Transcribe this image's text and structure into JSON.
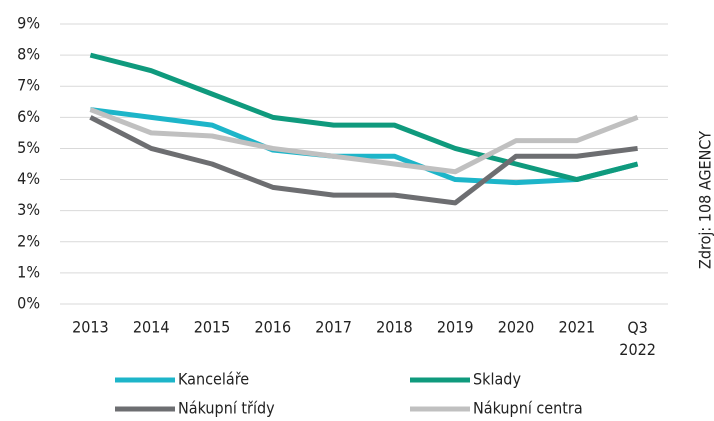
{
  "chart_data": {
    "type": "line",
    "source": "Zdroj: 108 AGENCY",
    "categories": [
      "2013",
      "2014",
      "2015",
      "2016",
      "2017",
      "2018",
      "2019",
      "2020",
      "2021",
      "Q3 2022"
    ],
    "series": [
      {
        "name": "Kanceláře",
        "color": "#1db5c9",
        "values": [
          6.25,
          6.0,
          5.75,
          4.95,
          4.75,
          4.75,
          4.0,
          3.9,
          4.0,
          4.5
        ]
      },
      {
        "name": "Sklady",
        "color": "#0f9a7d",
        "values": [
          8.0,
          7.5,
          6.75,
          6.0,
          5.75,
          5.75,
          5.0,
          4.5,
          4.0,
          4.5
        ]
      },
      {
        "name": "Nákupní třídy",
        "color": "#6d6e71",
        "values": [
          6.0,
          5.0,
          4.5,
          3.75,
          3.5,
          3.5,
          3.25,
          4.75,
          4.75,
          5.0
        ]
      },
      {
        "name": "Nákupní centra",
        "color": "#c0c0c0",
        "values": [
          6.25,
          5.5,
          5.4,
          5.0,
          4.75,
          4.5,
          4.25,
          5.25,
          5.25,
          6.0
        ]
      }
    ],
    "ylim": [
      0,
      9
    ],
    "yticks": [
      {
        "value": 0,
        "label": "0%"
      },
      {
        "value": 1,
        "label": "1%"
      },
      {
        "value": 2,
        "label": "2%"
      },
      {
        "value": 3,
        "label": "3%"
      },
      {
        "value": 4,
        "label": "4%"
      },
      {
        "value": 5,
        "label": "5%"
      },
      {
        "value": 6,
        "label": "6%"
      },
      {
        "value": 7,
        "label": "7%"
      },
      {
        "value": 8,
        "label": "8%"
      },
      {
        "value": 9,
        "label": "9%"
      }
    ],
    "grid": true
  }
}
